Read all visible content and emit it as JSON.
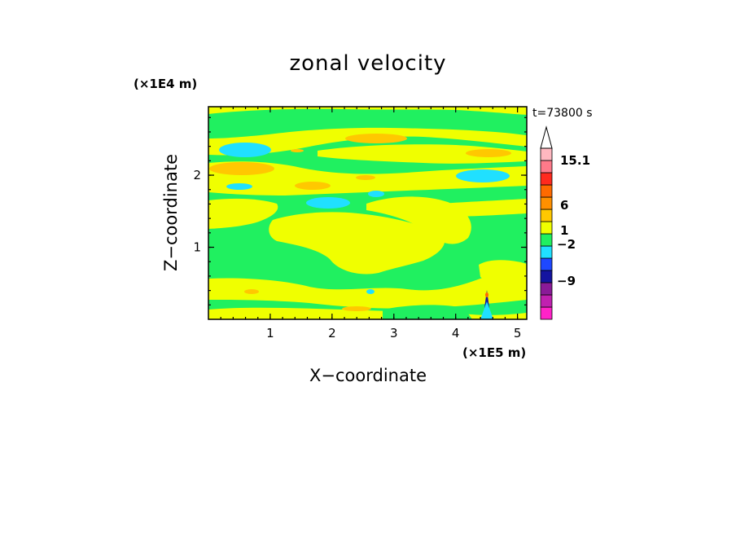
{
  "chart_data": {
    "type": "heatmap",
    "title": "zonal velocity",
    "xlabel": "X−coordinate",
    "ylabel": "Z−coordinate",
    "x_unit": "(×1E5 m)",
    "y_unit": "(×1E4 m)",
    "time_label": "t=73800 s",
    "xlim": [
      0,
      5.15
    ],
    "ylim": [
      0,
      2.95
    ],
    "x_ticks": [
      1,
      2,
      3,
      4,
      5
    ],
    "y_ticks": [
      1,
      2
    ],
    "colorbar": {
      "levels": [
        {
          "color": "#ff22c8"
        },
        {
          "color": "#c020b0"
        },
        {
          "color": "#8a1a98"
        },
        {
          "color": "#1414a0"
        },
        {
          "color": "#1e48ff"
        },
        {
          "color": "#20e0ff"
        },
        {
          "color": "#20f060"
        },
        {
          "color": "#f0ff00"
        },
        {
          "color": "#ffc800"
        },
        {
          "color": "#ff9000"
        },
        {
          "color": "#ff6a00"
        },
        {
          "color": "#ff2a1e"
        },
        {
          "color": "#ff7a8a"
        },
        {
          "color": "#ffb8c0"
        },
        {
          "color": "#ffffff"
        }
      ],
      "labels": [
        "15.1",
        "6",
        "1",
        "−2",
        "−9"
      ]
    },
    "field_colors": {
      "green": "#20f060",
      "yellow": "#f0ff00",
      "orange": "#ffc800",
      "cyan": "#20e0ff",
      "red": "#ff6a00",
      "blue": "#1414a0"
    },
    "grid": false,
    "legend_placement": "right colorbar"
  }
}
